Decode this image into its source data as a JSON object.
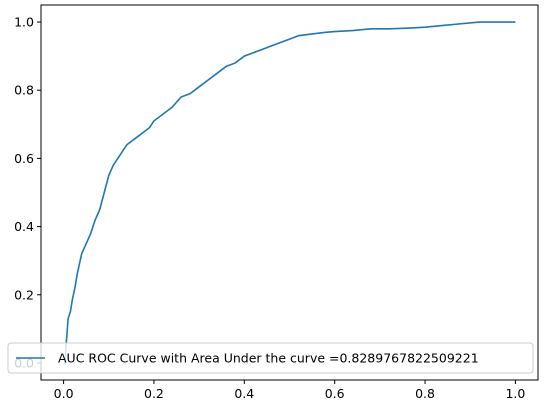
{
  "chart_data": {
    "type": "line",
    "title": "",
    "xlabel": "",
    "ylabel": "",
    "xlim": [
      -0.05,
      1.05
    ],
    "ylim": [
      -0.05,
      1.05
    ],
    "grid": false,
    "legend_position": "lower-right",
    "x_ticks": [
      0.0,
      0.2,
      0.4,
      0.6,
      0.8,
      1.0
    ],
    "x_tick_labels": [
      "0.0",
      "0.2",
      "0.4",
      "0.6",
      "0.8",
      "1.0"
    ],
    "y_ticks": [
      0.0,
      0.2,
      0.4,
      0.6,
      0.8,
      1.0
    ],
    "y_tick_labels": [
      "0.0",
      "0.2",
      "0.4",
      "0.6",
      "0.8",
      "1.0"
    ],
    "series": [
      {
        "name": "AUC ROC Curve with Area Under the curve =0.8289767822509221",
        "color": "#1f77b4",
        "x": [
          0.0,
          0.003,
          0.006,
          0.01,
          0.015,
          0.02,
          0.025,
          0.03,
          0.035,
          0.04,
          0.05,
          0.06,
          0.07,
          0.08,
          0.09,
          0.1,
          0.11,
          0.12,
          0.13,
          0.14,
          0.15,
          0.16,
          0.17,
          0.18,
          0.19,
          0.2,
          0.22,
          0.24,
          0.26,
          0.28,
          0.3,
          0.32,
          0.34,
          0.36,
          0.38,
          0.4,
          0.42,
          0.44,
          0.46,
          0.48,
          0.5,
          0.52,
          0.55,
          0.58,
          0.6,
          0.64,
          0.68,
          0.72,
          0.76,
          0.8,
          0.84,
          0.88,
          0.92,
          0.96,
          1.0
        ],
        "y": [
          0.0,
          0.0,
          0.06,
          0.13,
          0.15,
          0.19,
          0.22,
          0.26,
          0.29,
          0.32,
          0.35,
          0.38,
          0.42,
          0.45,
          0.5,
          0.55,
          0.58,
          0.6,
          0.62,
          0.64,
          0.65,
          0.66,
          0.67,
          0.68,
          0.69,
          0.71,
          0.73,
          0.75,
          0.78,
          0.79,
          0.81,
          0.83,
          0.85,
          0.87,
          0.88,
          0.9,
          0.91,
          0.92,
          0.93,
          0.94,
          0.95,
          0.96,
          0.965,
          0.97,
          0.972,
          0.975,
          0.98,
          0.98,
          0.982,
          0.985,
          0.99,
          0.995,
          1.0,
          1.0,
          1.0
        ]
      }
    ]
  }
}
